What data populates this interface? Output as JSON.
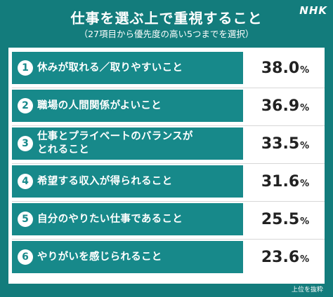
{
  "logo": "NHK",
  "title": "仕事を選ぶ上で重視すること",
  "subtitle": "（27項目から優先度の高い5つまでを選択）",
  "note": "上位を抜粋",
  "unit": "%",
  "colors": {
    "background": "#137c7c",
    "row_fill": "#17898a",
    "panel": "#ffffff",
    "value_text": "#222222"
  },
  "chart_data": {
    "type": "table",
    "title": "仕事を選ぶ上で重視すること",
    "subtitle": "（27項目から優先度の高い5つまでを選択）",
    "rows": [
      {
        "rank": "1",
        "label": "休みが取れる／取りやすいこと",
        "value": 38.0,
        "display": "38.0"
      },
      {
        "rank": "2",
        "label": "職場の人間関係がよいこと",
        "value": 36.9,
        "display": "36.9"
      },
      {
        "rank": "3",
        "label": "仕事とプライベートのバランスが\nとれること",
        "value": 33.5,
        "display": "33.5"
      },
      {
        "rank": "4",
        "label": "希望する収入が得られること",
        "value": 31.6,
        "display": "31.6"
      },
      {
        "rank": "5",
        "label": "自分のやりたい仕事であること",
        "value": 25.5,
        "display": "25.5"
      },
      {
        "rank": "6",
        "label": "やりがいを感じられること",
        "value": 23.6,
        "display": "23.6"
      }
    ],
    "unit": "%"
  }
}
